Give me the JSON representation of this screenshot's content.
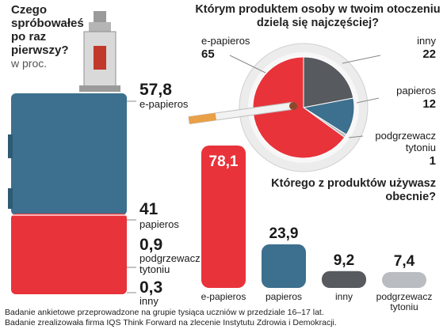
{
  "chart_data": [
    {
      "type": "stacked-bar",
      "title": "Czego spróbowałeś po raz pierwszy?",
      "subtitle": "w proc.",
      "series": [
        {
          "label": "e-papieros",
          "value_text": "57,8",
          "value": 57.8,
          "color": "#3d6f8e"
        },
        {
          "label": "papieros",
          "value_text": "41",
          "value": 41,
          "color": "#e8333a"
        },
        {
          "label": "podgrzewacz tytoniu",
          "value_text": "0,9",
          "value": 0.9,
          "color": "#e8333a"
        },
        {
          "label": "inny",
          "value_text": "0,3",
          "value": 0.3,
          "color": "#e8333a"
        }
      ]
    },
    {
      "type": "pie",
      "title": "Którym produktem osoby w twoim otoczeniu dzielą się najczęściej?",
      "series": [
        {
          "label": "e-papieros",
          "value_text": "65",
          "value": 65,
          "color": "#e8333a"
        },
        {
          "label": "inny",
          "value_text": "22",
          "value": 22,
          "color": "#575a5f"
        },
        {
          "label": "papieros",
          "value_text": "12",
          "value": 12,
          "color": "#3d6f8e"
        },
        {
          "label": "podgrzewacz tytoniu",
          "value_text": "1",
          "value": 1,
          "color": "#b9bcc0"
        }
      ]
    },
    {
      "type": "bar",
      "title": "Którego z produktów używasz obecnie?",
      "categories": [
        "e-papieros",
        "papieros",
        "inny",
        "podgrzewacz tytoniu"
      ],
      "values": [
        78.1,
        23.9,
        9.2,
        7.4
      ],
      "value_texts": [
        "78,1",
        "23,9",
        "9,2",
        "7,4"
      ],
      "colors": [
        "#e8333a",
        "#3d6f8e",
        "#575a5f",
        "#b9bcc0"
      ]
    }
  ],
  "footnote": {
    "line1": "Badanie ankietowe przeprowadzone na grupie tysiąca uczniów w przedziale 16–17 lat.",
    "line2": "Badanie zrealizowała firma IQS Think Forward na zlecenie Instytutu Zdrowia i Demokracji."
  }
}
